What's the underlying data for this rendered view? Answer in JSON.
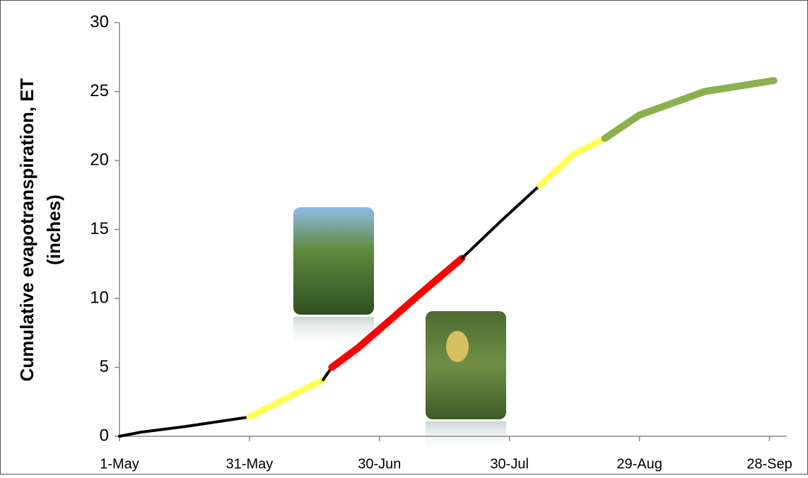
{
  "chart_data": {
    "type": "line",
    "ylabel": [
      "Cumulative evapotranspiration, ET",
      "(inches)"
    ],
    "xlim": [
      0,
      154
    ],
    "ylim": [
      0,
      30
    ],
    "xticks": [
      {
        "value": 0,
        "label": "1-May"
      },
      {
        "value": 30,
        "label": "31-May"
      },
      {
        "value": 60,
        "label": "30-Jun"
      },
      {
        "value": 90,
        "label": "30-Jul"
      },
      {
        "value": 120,
        "label": "29-Aug"
      },
      {
        "value": 150,
        "label": "28-Sep"
      }
    ],
    "yticks": [
      0,
      5,
      10,
      15,
      20,
      25,
      30
    ],
    "series": [
      {
        "color": "#000000",
        "width": 4,
        "x": [
          0,
          5,
          15,
          30
        ],
        "values": [
          0,
          0.3,
          0.7,
          1.4
        ]
      },
      {
        "color": "#ffff55",
        "width": 9,
        "x": [
          30,
          40,
          47
        ],
        "values": [
          1.4,
          3.0,
          4.1
        ]
      },
      {
        "color": "#000000",
        "width": 4,
        "x": [
          47,
          49
        ],
        "values": [
          4.1,
          5.0
        ]
      },
      {
        "color": "#ff0000",
        "width": 10,
        "x": [
          49,
          55,
          62,
          70,
          79
        ],
        "values": [
          5.0,
          6.4,
          8.3,
          10.5,
          12.9
        ]
      },
      {
        "color": "#000000",
        "width": 4,
        "x": [
          79,
          88,
          97
        ],
        "values": [
          12.9,
          15.6,
          18.2
        ]
      },
      {
        "color": "#ffff55",
        "width": 9,
        "x": [
          97,
          105,
          112
        ],
        "values": [
          18.2,
          20.5,
          21.6
        ]
      },
      {
        "color": "#8db04e",
        "width": 10,
        "x": [
          112,
          120,
          135,
          151
        ],
        "values": [
          21.6,
          23.3,
          25.0,
          25.8
        ]
      }
    ]
  }
}
